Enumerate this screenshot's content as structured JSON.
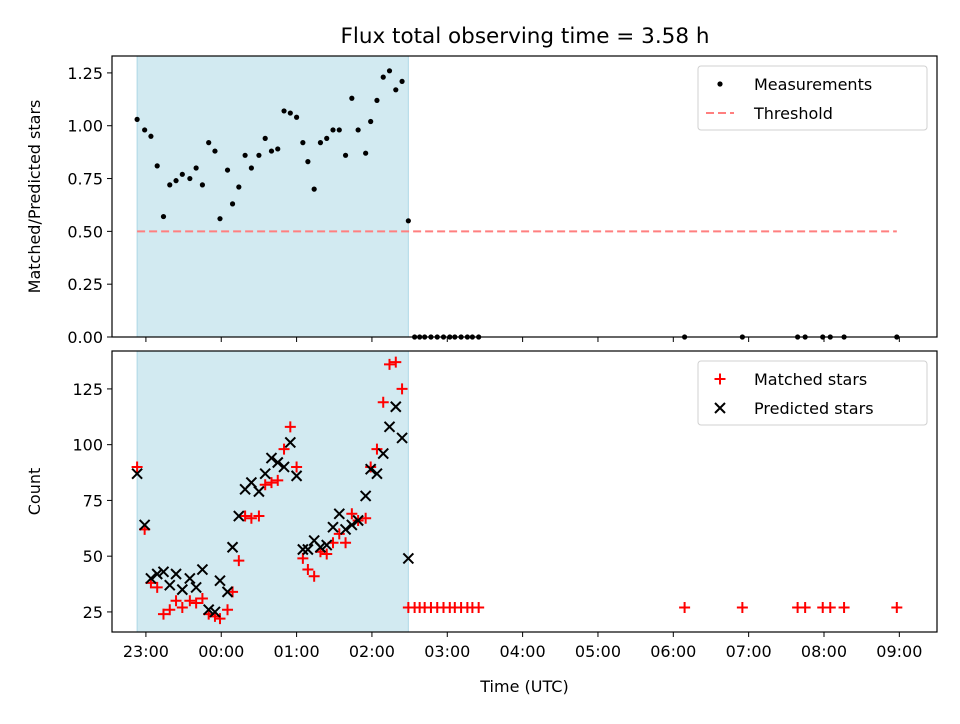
{
  "title": "Flux total observing time = 3.58 h",
  "colors": {
    "shade": "#add8e6",
    "measurement": "#000000",
    "threshold": "#ff7f7f",
    "matched": "#ff0000",
    "predicted": "#000000"
  },
  "chart_data": [
    {
      "type": "scatter",
      "panel": "top",
      "ylabel": "Matched/Predicted stars",
      "xlabel": "",
      "ylim": [
        0,
        1.33
      ],
      "yticks": [
        0.0,
        0.25,
        0.5,
        0.75,
        1.0,
        1.25
      ],
      "ytick_labels": [
        "0.00",
        "0.25",
        "0.50",
        "0.75",
        "1.00",
        "1.25"
      ],
      "xlim_hours": [
        22.55,
        9.5
      ],
      "xticks": [
        "23:00",
        "00:00",
        "01:00",
        "02:00",
        "03:00",
        "04:00",
        "05:00",
        "06:00",
        "07:00",
        "08:00",
        "09:00"
      ],
      "shaded_span": [
        "22:53",
        "02:29"
      ],
      "grid": false,
      "legend": "top-right",
      "series": [
        {
          "name": "Measurements",
          "kind": "scatter",
          "x": [
            "22:53",
            "22:59",
            "23:04",
            "23:09",
            "23:14",
            "23:19",
            "23:24",
            "23:29",
            "23:35",
            "23:40",
            "23:45",
            "23:50",
            "23:55",
            "23:59",
            "00:05",
            "00:09",
            "00:14",
            "00:19",
            "00:24",
            "00:30",
            "00:35",
            "00:40",
            "00:45",
            "00:50",
            "00:55",
            "01:00",
            "01:05",
            "01:09",
            "01:14",
            "01:19",
            "01:24",
            "01:29",
            "01:34",
            "01:39",
            "01:44",
            "01:49",
            "01:55",
            "01:59",
            "02:04",
            "02:09",
            "02:14",
            "02:19",
            "02:24",
            "02:29",
            "02:34",
            "02:38",
            "02:42",
            "02:47",
            "02:52",
            "02:57",
            "03:02",
            "03:06",
            "03:11",
            "03:16",
            "03:20",
            "03:25",
            "06:09",
            "06:55",
            "07:39",
            "07:45",
            "07:59",
            "08:05",
            "08:16",
            "08:58"
          ],
          "y": [
            1.03,
            0.98,
            0.95,
            0.81,
            0.57,
            0.72,
            0.74,
            0.77,
            0.75,
            0.8,
            0.72,
            0.92,
            0.88,
            0.56,
            0.79,
            0.63,
            0.71,
            0.86,
            0.8,
            0.86,
            0.94,
            0.88,
            0.89,
            1.07,
            1.06,
            1.04,
            0.92,
            0.83,
            0.7,
            0.92,
            0.94,
            0.98,
            0.98,
            0.86,
            1.13,
            0.98,
            0.87,
            1.02,
            1.12,
            1.23,
            1.26,
            1.17,
            1.21,
            0.55,
            0,
            0,
            0,
            0,
            0,
            0,
            0,
            0,
            0,
            0,
            0,
            0,
            0,
            0,
            0,
            0,
            0,
            0,
            0,
            0
          ]
        },
        {
          "name": "Threshold",
          "kind": "dashed-line",
          "x": [
            "22:53",
            "08:58"
          ],
          "y": [
            0.5,
            0.5
          ]
        }
      ]
    },
    {
      "type": "scatter",
      "panel": "bottom",
      "ylabel": "Count",
      "xlabel": "Time (UTC)",
      "ylim": [
        16,
        142
      ],
      "yticks": [
        25,
        50,
        75,
        100,
        125
      ],
      "ytick_labels": [
        "25",
        "50",
        "75",
        "100",
        "125"
      ],
      "xlim_hours": [
        22.55,
        9.5
      ],
      "xticks": [
        "23:00",
        "00:00",
        "01:00",
        "02:00",
        "03:00",
        "04:00",
        "05:00",
        "06:00",
        "07:00",
        "08:00",
        "09:00"
      ],
      "shaded_span": [
        "22:53",
        "02:29"
      ],
      "grid": false,
      "legend": "top-right",
      "series": [
        {
          "name": "Matched stars",
          "marker": "plus",
          "x": [
            "22:53",
            "22:59",
            "23:04",
            "23:09",
            "23:14",
            "23:19",
            "23:24",
            "23:29",
            "23:35",
            "23:40",
            "23:45",
            "23:50",
            "23:55",
            "23:59",
            "00:05",
            "00:09",
            "00:14",
            "00:19",
            "00:24",
            "00:30",
            "00:35",
            "00:40",
            "00:45",
            "00:50",
            "00:55",
            "01:00",
            "01:05",
            "01:09",
            "01:14",
            "01:19",
            "01:24",
            "01:29",
            "01:34",
            "01:39",
            "01:44",
            "01:49",
            "01:55",
            "01:59",
            "02:04",
            "02:09",
            "02:14",
            "02:19",
            "02:24",
            "02:29",
            "02:34",
            "02:38",
            "02:42",
            "02:47",
            "02:52",
            "02:57",
            "03:02",
            "03:06",
            "03:11",
            "03:16",
            "03:20",
            "03:25",
            "06:09",
            "06:55",
            "07:39",
            "07:45",
            "07:59",
            "08:05",
            "08:16",
            "08:58"
          ],
          "y": [
            90,
            62,
            38,
            36,
            24,
            26,
            30,
            27,
            30,
            29,
            31,
            24,
            23,
            22,
            26,
            34,
            48,
            68,
            67,
            68,
            82,
            83,
            84,
            98,
            108,
            90,
            49,
            44,
            41,
            52,
            51,
            56,
            60,
            56,
            69,
            66,
            67,
            90,
            98,
            119,
            136,
            137,
            125,
            27,
            27,
            27,
            27,
            27,
            27,
            27,
            27,
            27,
            27,
            27,
            27,
            27,
            27,
            27,
            27,
            27,
            27,
            27,
            27,
            27
          ]
        },
        {
          "name": "Predicted stars",
          "marker": "x",
          "x": [
            "22:53",
            "22:59",
            "23:04",
            "23:09",
            "23:14",
            "23:19",
            "23:24",
            "23:29",
            "23:35",
            "23:40",
            "23:45",
            "23:50",
            "23:55",
            "23:59",
            "00:05",
            "00:09",
            "00:14",
            "00:19",
            "00:24",
            "00:30",
            "00:35",
            "00:40",
            "00:45",
            "00:50",
            "00:55",
            "01:00",
            "01:05",
            "01:09",
            "01:14",
            "01:19",
            "01:24",
            "01:29",
            "01:34",
            "01:39",
            "01:44",
            "01:49",
            "01:55",
            "01:59",
            "02:04",
            "02:09",
            "02:14",
            "02:19",
            "02:24",
            "02:29"
          ],
          "y": [
            87,
            64,
            40,
            42,
            43,
            37,
            42,
            35,
            40,
            36,
            44,
            26,
            25,
            39,
            34,
            54,
            68,
            80,
            83,
            79,
            87,
            94,
            92,
            90,
            101,
            86,
            53,
            53,
            57,
            54,
            55,
            63,
            69,
            62,
            64,
            66,
            77,
            89,
            87,
            96,
            108,
            117,
            103,
            49
          ]
        }
      ]
    }
  ]
}
